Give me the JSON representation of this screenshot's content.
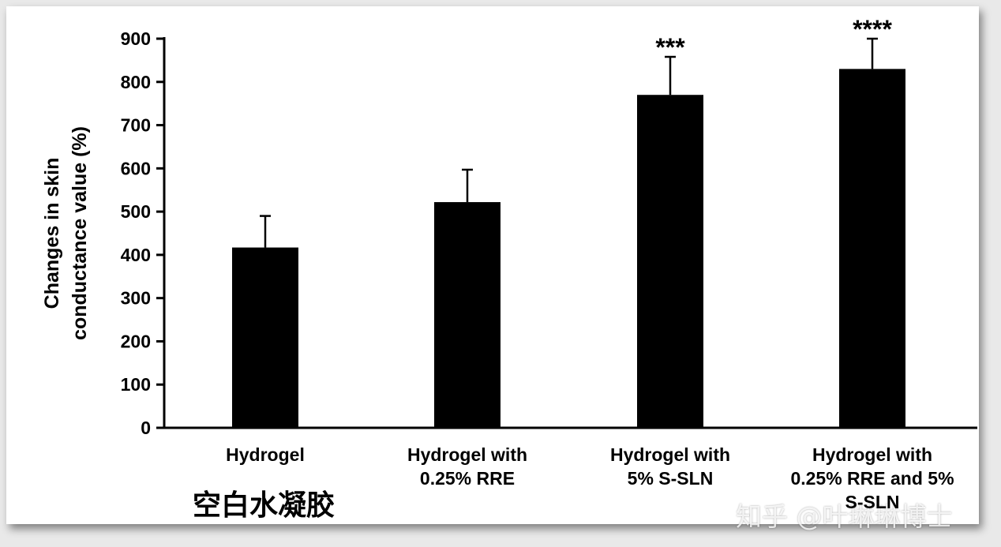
{
  "chart_data": {
    "type": "bar",
    "categories": [
      "Hydrogel",
      "Hydrogel with\n0.25% RRE",
      "Hydrogel with\n5% S-SLN",
      "Hydrogel with\n0.25% RRE and 5%\nS-SLN"
    ],
    "values": [
      417,
      522,
      770,
      830
    ],
    "errors": [
      73,
      75,
      88,
      70
    ],
    "significance": [
      "",
      "",
      "***",
      "****"
    ],
    "ylabel_line1": "Changes in skin",
    "ylabel_line2": "conductance value (%)",
    "ylim": [
      0,
      900
    ],
    "yticks": [
      0,
      100,
      200,
      300,
      400,
      500,
      600,
      700,
      800,
      900
    ],
    "bar_color": "#000000",
    "grid": false
  },
  "annotation_cn": "空白水凝胶",
  "watermark": "知乎 @叶琳琳博士"
}
